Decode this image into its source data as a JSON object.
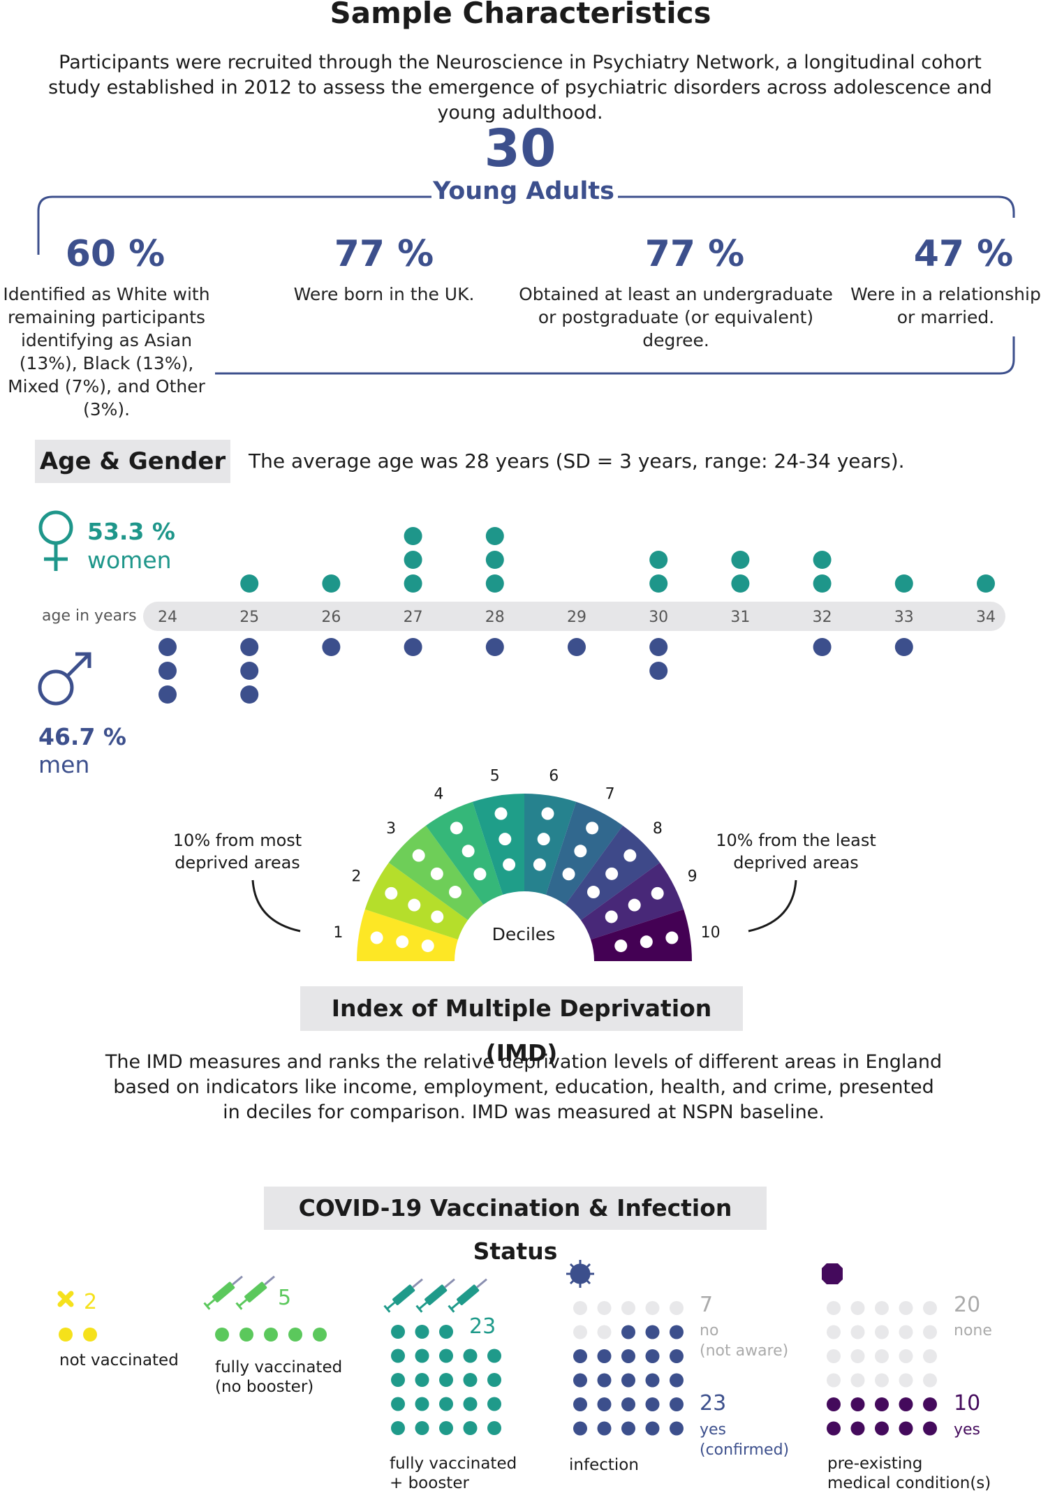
{
  "title": "Sample Characteristics",
  "intro": "Participants were recruited through the Neuroscience in Psychiatry Network, a longitudinal cohort study established in 2012 to assess the emergence of psychiatric disorders across adolescence and young adulthood.",
  "total": {
    "value": "30",
    "label": "Young Adults"
  },
  "stats": [
    {
      "pct": "60 %",
      "text": "Identified as White with remaining participants identifying as Asian (13%), Black (13%), Mixed (7%), and Other (3%)."
    },
    {
      "pct": "77 %",
      "text": "Were born in the UK."
    },
    {
      "pct": "77 %",
      "text": "Obtained at least an undergraduate or postgraduate (or equivalent) degree."
    },
    {
      "pct": "47 %",
      "text": "Were in a relationship or married."
    }
  ],
  "age_gender": {
    "heading": "Age & Gender",
    "summary": "The average age was 28 years  (SD = 3 years, range: 24-34 years).",
    "women_pct": "53.3 %",
    "women_label": "women",
    "men_pct": "46.7 %",
    "men_label": "men",
    "axis_label": "age in years",
    "colors": {
      "women": "#1e968a",
      "men": "#3c4f8c",
      "track": "#e6e6e8"
    }
  },
  "imd": {
    "heading": "Index of Multiple Deprivation (IMD)",
    "left_note": "10% from most deprived areas",
    "right_note": "10% from the least deprived areas",
    "center_label": "Deciles",
    "description": "The IMD measures and ranks the relative deprivation levels of different areas in England based on indicators like income, employment, education, health, and crime, presented in deciles for comparison. IMD was measured at NSPN baseline."
  },
  "covid": {
    "heading": "COVID-19 Vaccination & Infection Status",
    "not_vaccinated": {
      "count": "2",
      "caption": "not vaccinated",
      "color": "#f5e11b"
    },
    "no_booster": {
      "count": "5",
      "caption_1": "fully vaccinated",
      "caption_2": "(no booster)",
      "color": "#5bc85c"
    },
    "booster": {
      "count": "23",
      "caption_1": "fully vaccinated",
      "caption_2": "+ booster",
      "color": "#1f9a8a"
    },
    "infection": {
      "no_count": "7",
      "no_label_1": "no",
      "no_label_2": "(not aware)",
      "yes_count": "23",
      "yes_label_1": "yes",
      "yes_label_2": "(confirmed)",
      "caption": "infection",
      "color": "#3c4f8c"
    },
    "condition": {
      "none_count": "20",
      "none_label": "none",
      "yes_count": "10",
      "yes_label": "yes",
      "caption_1": "pre-existing",
      "caption_2": "medical condition(s)",
      "color": "#440a5c"
    },
    "empty_color": "#e8e8ea"
  },
  "chart_data": [
    {
      "type": "scatter",
      "title": "Age & Gender",
      "xlabel": "age in years",
      "categories": [
        "24",
        "25",
        "26",
        "27",
        "28",
        "29",
        "30",
        "31",
        "32",
        "33",
        "34"
      ],
      "series": [
        {
          "name": "women",
          "values": [
            0,
            1,
            1,
            3,
            3,
            0,
            2,
            2,
            2,
            1,
            1
          ]
        },
        {
          "name": "men",
          "values": [
            3,
            3,
            1,
            1,
            1,
            1,
            2,
            0,
            1,
            1,
            0
          ]
        }
      ]
    },
    {
      "type": "pie",
      "title": "Index of Multiple Deprivation (IMD)",
      "categories": [
        "1",
        "2",
        "3",
        "4",
        "5",
        "6",
        "7",
        "8",
        "9",
        "10"
      ],
      "values": [
        3,
        3,
        3,
        3,
        3,
        3,
        3,
        3,
        3,
        3
      ],
      "colors": [
        "#fde725",
        "#b5de2b",
        "#6ece58",
        "#35b779",
        "#1f9e89",
        "#26828e",
        "#31688e",
        "#3e4989",
        "#482878",
        "#440154"
      ]
    },
    {
      "type": "bar",
      "title": "COVID-19 Vaccination & Infection Status",
      "categories": [
        "not vaccinated",
        "fully vaccinated (no booster)",
        "fully vaccinated + booster"
      ],
      "values": [
        2,
        5,
        23
      ]
    },
    {
      "type": "bar",
      "categories": [
        "no (not aware)",
        "yes (confirmed)"
      ],
      "values": [
        7,
        23
      ]
    },
    {
      "type": "bar",
      "categories": [
        "none",
        "yes"
      ],
      "values": [
        20,
        10
      ]
    }
  ]
}
